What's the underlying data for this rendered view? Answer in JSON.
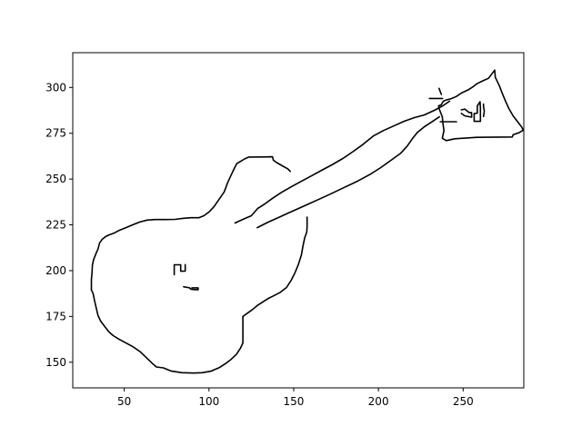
{
  "chart_data": {
    "type": "line",
    "title": "",
    "xlabel": "",
    "ylabel": "",
    "xlim": [
      19.6,
      285.8
    ],
    "ylim": [
      136,
      319
    ],
    "xticks": [
      50,
      100,
      150,
      200,
      250
    ],
    "yticks": [
      150,
      175,
      200,
      225,
      250,
      275,
      300
    ],
    "grid": false,
    "legend": "none",
    "line_color": "#000000",
    "series": [
      {
        "values": [
          [
            30.6,
            189.5
          ],
          [
            31.6,
            187.5
          ],
          [
            32.5,
            183.5
          ],
          [
            33.5,
            179.5
          ],
          [
            34.5,
            175.5
          ],
          [
            36,
            172.5
          ],
          [
            38.5,
            169.5
          ],
          [
            41,
            166.5
          ],
          [
            43.5,
            164.5
          ],
          [
            47,
            162.5
          ],
          [
            51,
            160.5
          ],
          [
            55,
            158.5
          ],
          [
            59.3,
            155.8
          ],
          [
            63,
            152.5
          ],
          [
            66.4,
            149.5
          ],
          [
            69,
            147.4
          ],
          [
            73.1,
            146.9
          ],
          [
            77.5,
            145.2
          ],
          [
            84,
            144.3
          ],
          [
            91,
            144.1
          ],
          [
            96,
            144.3
          ],
          [
            101,
            145.1
          ],
          [
            106,
            147
          ],
          [
            109.8,
            149.3
          ],
          [
            113,
            151.5
          ],
          [
            116.2,
            154.3
          ],
          [
            118.5,
            157.5
          ],
          [
            120,
            160.5
          ],
          [
            120,
            166
          ],
          [
            120,
            175
          ],
          [
            123,
            177
          ],
          [
            126,
            179
          ],
          [
            128.8,
            181.2
          ],
          [
            132,
            183
          ],
          [
            135,
            184.8
          ],
          [
            138,
            186.2
          ],
          [
            142,
            188.1
          ],
          [
            145.8,
            190.8
          ],
          [
            148.5,
            194.7
          ],
          [
            150.8,
            199
          ],
          [
            152.8,
            203.5
          ],
          [
            154.5,
            208.5
          ],
          [
            155.5,
            213.5
          ],
          [
            156.5,
            218
          ],
          [
            157.7,
            221
          ],
          [
            157.9,
            224
          ]
        ]
      },
      {
        "values": [
          [
            157.9,
            224
          ],
          [
            157.9,
            229.2
          ]
        ]
      },
      {
        "values": [
          [
            30.6,
            189.5
          ],
          [
            30.6,
            195
          ],
          [
            31,
            199
          ],
          [
            31.2,
            203
          ],
          [
            31.9,
            206
          ],
          [
            33.2,
            209
          ],
          [
            34.6,
            212
          ],
          [
            35.4,
            215
          ],
          [
            36.9,
            217
          ],
          [
            38.8,
            218.5
          ],
          [
            41,
            219.5
          ],
          [
            44,
            220.5
          ],
          [
            47,
            222
          ],
          [
            51,
            223.5
          ],
          [
            55,
            225
          ],
          [
            59,
            226.5
          ],
          [
            63.5,
            227.6
          ],
          [
            68,
            227.9
          ],
          [
            74,
            227.9
          ],
          [
            80,
            228
          ],
          [
            85,
            228.6
          ],
          [
            89.5,
            228.9
          ],
          [
            94,
            228.9
          ],
          [
            97,
            230
          ],
          [
            100,
            232
          ],
          [
            103,
            235
          ],
          [
            106,
            239
          ],
          [
            109,
            243
          ],
          [
            111,
            248
          ],
          [
            113,
            252
          ],
          [
            115,
            256
          ],
          [
            116.5,
            258.5
          ],
          [
            118.5,
            259.6
          ],
          [
            121,
            261
          ],
          [
            123.5,
            262
          ],
          [
            137.5,
            262.1
          ]
        ]
      },
      {
        "values": [
          [
            134.8,
            262.1
          ],
          [
            137.5,
            262.1
          ],
          [
            138,
            260.3
          ],
          [
            140,
            259
          ],
          [
            143.7,
            257
          ],
          [
            146.5,
            255.6
          ],
          [
            148,
            254.2
          ]
        ]
      },
      {
        "values": [
          [
            115.4,
            226
          ],
          [
            120,
            228
          ],
          [
            125,
            230
          ],
          [
            128.8,
            234
          ],
          [
            133,
            236.5
          ],
          [
            138,
            239.8
          ],
          [
            143,
            242.8
          ],
          [
            149,
            246
          ],
          [
            155,
            249
          ],
          [
            161,
            252
          ],
          [
            167,
            255
          ],
          [
            173,
            258
          ],
          [
            179,
            261.2
          ],
          [
            185,
            265
          ],
          [
            191,
            269
          ],
          [
            197,
            273.5
          ],
          [
            203,
            276.5
          ],
          [
            209,
            279
          ],
          [
            215,
            281.5
          ],
          [
            221,
            283.5
          ],
          [
            227,
            285
          ],
          [
            233,
            287.5
          ],
          [
            238,
            290
          ],
          [
            242,
            292.5
          ]
        ]
      },
      {
        "values": [
          [
            128.5,
            223.5
          ],
          [
            135,
            226.5
          ],
          [
            141,
            229
          ],
          [
            147,
            231.5
          ],
          [
            153,
            234
          ],
          [
            159,
            236.5
          ],
          [
            165,
            239
          ],
          [
            172,
            242
          ],
          [
            180,
            245.5
          ],
          [
            188,
            249
          ],
          [
            195,
            252.5
          ],
          [
            201,
            256
          ],
          [
            207,
            260
          ],
          [
            213,
            264
          ],
          [
            217,
            268
          ],
          [
            220,
            272
          ],
          [
            223,
            275.5
          ],
          [
            227,
            278.5
          ],
          [
            232,
            281.5
          ],
          [
            236,
            284
          ]
        ]
      },
      {
        "values": [
          [
            235.5,
            290
          ],
          [
            236,
            288
          ],
          [
            237.7,
            284
          ],
          [
            238,
            281
          ],
          [
            238.7,
            276.5
          ],
          [
            237.7,
            272.3
          ],
          [
            240,
            271
          ],
          [
            245,
            272
          ],
          [
            258,
            272.8
          ],
          [
            279,
            273
          ],
          [
            279.5,
            274.2
          ],
          [
            283,
            275.3
          ],
          [
            285.5,
            276.7
          ],
          [
            284.5,
            278.5
          ],
          [
            282,
            281.5
          ],
          [
            279.5,
            284.5
          ],
          [
            277,
            288.5
          ],
          [
            275,
            292.5
          ],
          [
            273,
            297
          ],
          [
            271.2,
            301.3
          ],
          [
            269,
            305.5
          ],
          [
            268.6,
            309.5
          ],
          [
            267,
            307.5
          ],
          [
            265,
            305
          ],
          [
            262,
            303.8
          ],
          [
            258,
            302
          ],
          [
            256,
            300.5
          ],
          [
            253,
            298.7
          ],
          [
            249,
            297
          ],
          [
            246,
            295.1
          ],
          [
            243,
            293.9
          ],
          [
            239.8,
            293.1
          ],
          [
            238.3,
            292.5
          ],
          [
            237,
            290.5
          ],
          [
            235.5,
            290
          ]
        ]
      },
      {
        "values": [
          [
            235.8,
            299.5
          ],
          [
            236.5,
            297.8
          ],
          [
            237.2,
            296.2
          ]
        ]
      },
      {
        "values": [
          [
            230.1,
            294
          ],
          [
            237.9,
            294
          ]
        ]
      },
      {
        "values": [
          [
            236.5,
            281.3
          ],
          [
            246.1,
            281.3
          ]
        ]
      },
      {
        "values": [
          [
            262,
            291
          ],
          [
            262,
            289.5
          ],
          [
            262.5,
            287
          ],
          [
            262,
            284.2
          ]
        ]
      },
      {
        "values": [
          [
            256.5,
            281.5
          ],
          [
            256.5,
            285.7
          ],
          [
            258.4,
            286
          ],
          [
            258.4,
            290
          ],
          [
            260,
            292.2
          ],
          [
            260.2,
            288.8
          ],
          [
            260.2,
            281.5
          ],
          [
            256.5,
            281.5
          ]
        ]
      },
      {
        "values": [
          [
            249,
            285.8
          ],
          [
            251,
            284.5
          ],
          [
            255,
            283.8
          ],
          [
            255,
            286.3
          ],
          [
            253.5,
            286.3
          ],
          [
            251,
            288.2
          ],
          [
            249,
            287.8
          ]
        ]
      },
      {
        "values": [
          [
            79.5,
            197.8
          ],
          [
            79.5,
            203.2
          ],
          [
            83.3,
            203.2
          ],
          [
            83.3,
            199.7
          ],
          [
            86,
            199.8
          ],
          [
            86,
            203.3
          ]
        ]
      },
      {
        "values": [
          [
            85,
            191.2
          ],
          [
            88.5,
            190.6
          ],
          [
            89.4,
            189.8
          ],
          [
            92,
            189.6
          ],
          [
            93.6,
            189.6
          ],
          [
            93.6,
            190.6
          ],
          [
            89.9,
            190.6
          ]
        ]
      }
    ]
  }
}
